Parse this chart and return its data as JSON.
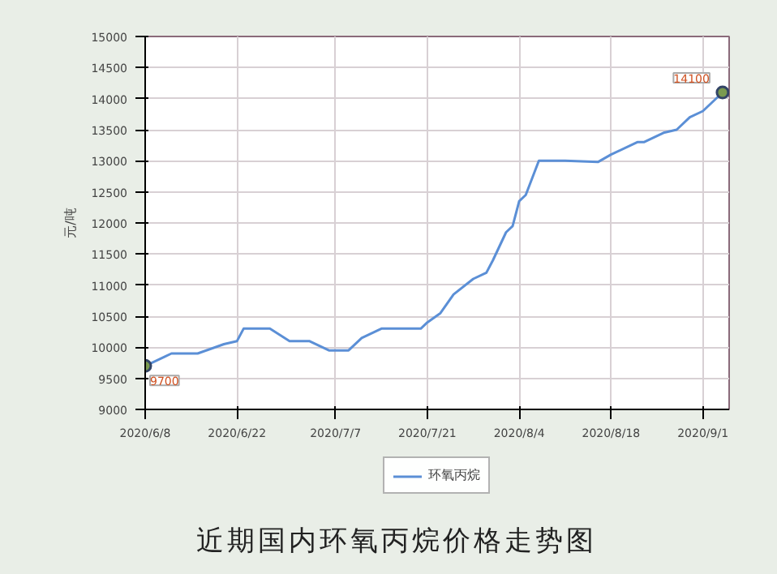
{
  "chart_data": {
    "type": "line",
    "title": "近期国内环氧丙烷价格走势图",
    "ylabel": "元/吨",
    "x": [
      "2020-06-08",
      "2020-06-11",
      "2020-06-12",
      "2020-06-16",
      "2020-06-20",
      "2020-06-22",
      "2020-06-23",
      "2020-06-27",
      "2020-06-30",
      "2020-07-03",
      "2020-07-06",
      "2020-07-09",
      "2020-07-11",
      "2020-07-14",
      "2020-07-20",
      "2020-07-21",
      "2020-07-23",
      "2020-07-25",
      "2020-07-28",
      "2020-07-30",
      "2020-07-31",
      "2020-08-02",
      "2020-08-03",
      "2020-08-04",
      "2020-08-05",
      "2020-08-07",
      "2020-08-11",
      "2020-08-16",
      "2020-08-18",
      "2020-08-22",
      "2020-08-23",
      "2020-08-26",
      "2020-08-28",
      "2020-08-30",
      "2020-09-01",
      "2020-09-04"
    ],
    "series": [
      {
        "name": "环氧丙烷",
        "color": "#5b8fd6",
        "values": [
          9700,
          9850,
          9900,
          9900,
          10050,
          10100,
          10300,
          10300,
          10100,
          10100,
          9950,
          9950,
          10150,
          10300,
          10300,
          10400,
          10550,
          10850,
          11100,
          11200,
          11400,
          11850,
          11950,
          12350,
          12450,
          13000,
          13000,
          12980,
          13100,
          13300,
          13300,
          13450,
          13500,
          13700,
          13800,
          14100
        ]
      }
    ],
    "xlim": [
      "2020-06-08",
      "2020-09-05"
    ],
    "xticks": [
      {
        "value": "2020-06-08",
        "label": "2020/6/8"
      },
      {
        "value": "2020-06-22",
        "label": "2020/6/22"
      },
      {
        "value": "2020-07-07",
        "label": "2020/7/7"
      },
      {
        "value": "2020-07-21",
        "label": "2020/7/21"
      },
      {
        "value": "2020-08-04",
        "label": "2020/8/4"
      },
      {
        "value": "2020-08-18",
        "label": "2020/8/18"
      },
      {
        "value": "2020-09-01",
        "label": "2020/9/1"
      }
    ],
    "ylim": [
      9000,
      15000
    ],
    "yticks": [
      9000,
      9500,
      10000,
      10500,
      11000,
      11500,
      12000,
      12500,
      13000,
      13500,
      14000,
      14500,
      15000
    ],
    "annotations": [
      {
        "text": "9700",
        "x": "2020-06-08",
        "y": 9700
      },
      {
        "text": "14100",
        "x": "2020-09-04",
        "y": 14100
      }
    ],
    "grid": true,
    "legend": "bottom"
  }
}
